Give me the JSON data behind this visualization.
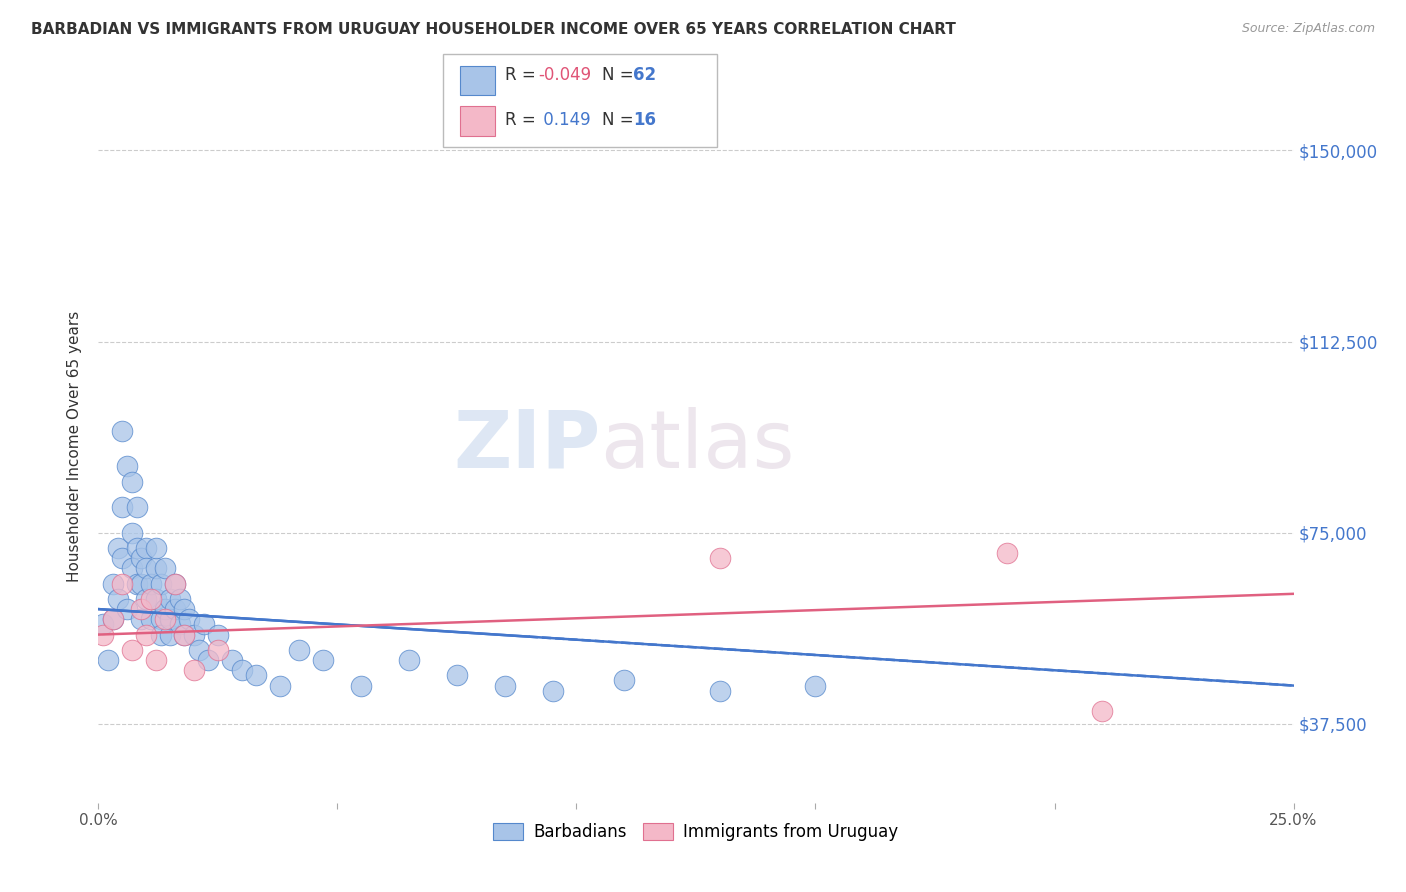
{
  "title": "BARBADIAN VS IMMIGRANTS FROM URUGUAY HOUSEHOLDER INCOME OVER 65 YEARS CORRELATION CHART",
  "source": "Source: ZipAtlas.com",
  "ylabel": "Householder Income Over 65 years",
  "xlim": [
    0,
    0.25
  ],
  "ylim": [
    22000,
    162000
  ],
  "xticks": [
    0.0,
    0.05,
    0.1,
    0.15,
    0.2,
    0.25
  ],
  "xticklabels": [
    "0.0%",
    "",
    "",
    "",
    "",
    "25.0%"
  ],
  "ytick_positions": [
    37500,
    75000,
    112500,
    150000
  ],
  "ytick_labels": [
    "$37,500",
    "$75,000",
    "$112,500",
    "$150,000"
  ],
  "blue_color": "#a8c4e8",
  "pink_color": "#f4b8c8",
  "blue_edge_color": "#5588cc",
  "pink_edge_color": "#e07090",
  "blue_line_color": "#4477cc",
  "pink_line_color": "#e06080",
  "watermark_zip": "ZIP",
  "watermark_atlas": "atlas",
  "grid_color": "#cccccc",
  "barbadians_x": [
    0.001,
    0.002,
    0.003,
    0.003,
    0.004,
    0.004,
    0.005,
    0.005,
    0.005,
    0.006,
    0.006,
    0.007,
    0.007,
    0.007,
    0.008,
    0.008,
    0.008,
    0.009,
    0.009,
    0.009,
    0.01,
    0.01,
    0.01,
    0.011,
    0.011,
    0.012,
    0.012,
    0.012,
    0.013,
    0.013,
    0.013,
    0.014,
    0.014,
    0.015,
    0.015,
    0.015,
    0.016,
    0.016,
    0.017,
    0.017,
    0.018,
    0.018,
    0.019,
    0.02,
    0.021,
    0.022,
    0.023,
    0.025,
    0.028,
    0.03,
    0.033,
    0.038,
    0.042,
    0.047,
    0.055,
    0.065,
    0.075,
    0.085,
    0.095,
    0.11,
    0.13,
    0.15
  ],
  "barbadians_y": [
    57000,
    50000,
    58000,
    65000,
    62000,
    72000,
    95000,
    70000,
    80000,
    60000,
    88000,
    68000,
    85000,
    75000,
    65000,
    72000,
    80000,
    65000,
    70000,
    58000,
    72000,
    68000,
    62000,
    65000,
    58000,
    68000,
    72000,
    62000,
    65000,
    58000,
    55000,
    60000,
    68000,
    55000,
    62000,
    58000,
    60000,
    65000,
    57000,
    62000,
    55000,
    60000,
    58000,
    55000,
    52000,
    57000,
    50000,
    55000,
    50000,
    48000,
    47000,
    45000,
    52000,
    50000,
    45000,
    50000,
    47000,
    45000,
    44000,
    46000,
    44000,
    45000
  ],
  "uruguay_x": [
    0.001,
    0.003,
    0.005,
    0.007,
    0.009,
    0.01,
    0.011,
    0.012,
    0.014,
    0.016,
    0.018,
    0.02,
    0.025,
    0.13,
    0.19,
    0.21
  ],
  "uruguay_y": [
    55000,
    58000,
    65000,
    52000,
    60000,
    55000,
    62000,
    50000,
    58000,
    65000,
    55000,
    48000,
    52000,
    70000,
    71000,
    40000
  ],
  "blue_trend_x0": 0.0,
  "blue_trend_x1": 0.25,
  "blue_trend_y0": 60000,
  "blue_trend_y1": 45000,
  "pink_trend_x0": 0.0,
  "pink_trend_x1": 0.25,
  "pink_trend_y0": 55000,
  "pink_trend_y1": 63000
}
